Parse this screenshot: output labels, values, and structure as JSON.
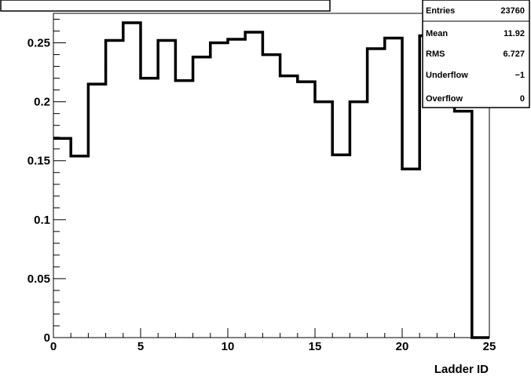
{
  "chart_data": {
    "type": "histogram",
    "title": "",
    "xlabel": "Ladder ID",
    "ylabel": "",
    "xlim": [
      0,
      25
    ],
    "ylim": [
      0,
      0.275
    ],
    "bin_edges": [
      0,
      1,
      2,
      3,
      4,
      5,
      6,
      7,
      8,
      9,
      10,
      11,
      12,
      13,
      14,
      15,
      16,
      17,
      18,
      19,
      20,
      21,
      22,
      23,
      24,
      25
    ],
    "values": [
      0.169,
      0.154,
      0.215,
      0.252,
      0.267,
      0.22,
      0.252,
      0.218,
      0.238,
      0.25,
      0.253,
      0.259,
      0.24,
      0.222,
      0.217,
      0.2,
      0.155,
      0.2,
      0.245,
      0.254,
      0.143,
      0.256,
      0.225,
      0.192,
      0.0
    ],
    "x_ticks": [
      0,
      5,
      10,
      15,
      20,
      25
    ],
    "x_tick_labels": [
      "0",
      "5",
      "10",
      "15",
      "20",
      "25"
    ],
    "y_ticks": [
      0,
      0.05,
      0.1,
      0.15,
      0.2,
      0.25
    ],
    "y_tick_labels": [
      "0",
      "0.05",
      "0.1",
      "0.15",
      "0.2",
      "0.25"
    ],
    "grid": false,
    "stats_box": {
      "entries": [
        "Entries",
        "23760"
      ],
      "mean": [
        "Mean",
        "11.92"
      ],
      "rms": [
        "RMS",
        "6.727"
      ],
      "underflow": [
        "Underflow",
        "−1"
      ],
      "overflow": [
        "Overflow",
        "0"
      ]
    },
    "colors": {
      "line": "#000000",
      "background": "#ffffff"
    }
  }
}
